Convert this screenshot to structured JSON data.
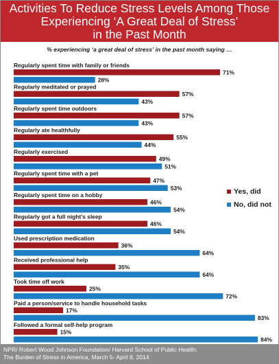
{
  "title_lines": [
    "Activities To Reduce Stress Levels Among Those",
    "Experiencing ‘A Great Deal of Stress’",
    "in the Past Month"
  ],
  "subtitle": "% experiencing ‘a great deal of stress’ in the past month  saying …",
  "footer_lines": [
    "NPR/ Robert Wood Johnson Foundation/ Harvard School of Public Health:",
    "The Burden of Stress in America, March 5- April 8, 2014"
  ],
  "chart_data": {
    "type": "bar",
    "orientation": "horizontal",
    "categories": [
      "Regularly spent time with family or friends",
      "Regularly meditated or prayed",
      "Regularly spent time outdoors",
      "Regularly ate healthfully",
      "Regularly exercised",
      "Regularly spent time with a pet",
      "Regularly spent time on a hobby",
      "Regularly got a full night’s sleep",
      "Used prescription medication",
      "Received professional help",
      "Took time off work",
      "Paid a person/service to handle household tasks",
      "Followed a formal self-help program"
    ],
    "series": [
      {
        "name": "Yes, did",
        "color": "#9e1b1f",
        "values": [
          71,
          57,
          57,
          55,
          49,
          47,
          46,
          46,
          36,
          35,
          25,
          17,
          15
        ]
      },
      {
        "name": "No, did not",
        "color": "#1f7fc4",
        "values": [
          28,
          43,
          43,
          44,
          51,
          53,
          54,
          54,
          64,
          64,
          72,
          83,
          84
        ]
      }
    ],
    "value_suffix": "%",
    "xlim": [
      0,
      100
    ],
    "legend_position": "right",
    "grid": false
  }
}
